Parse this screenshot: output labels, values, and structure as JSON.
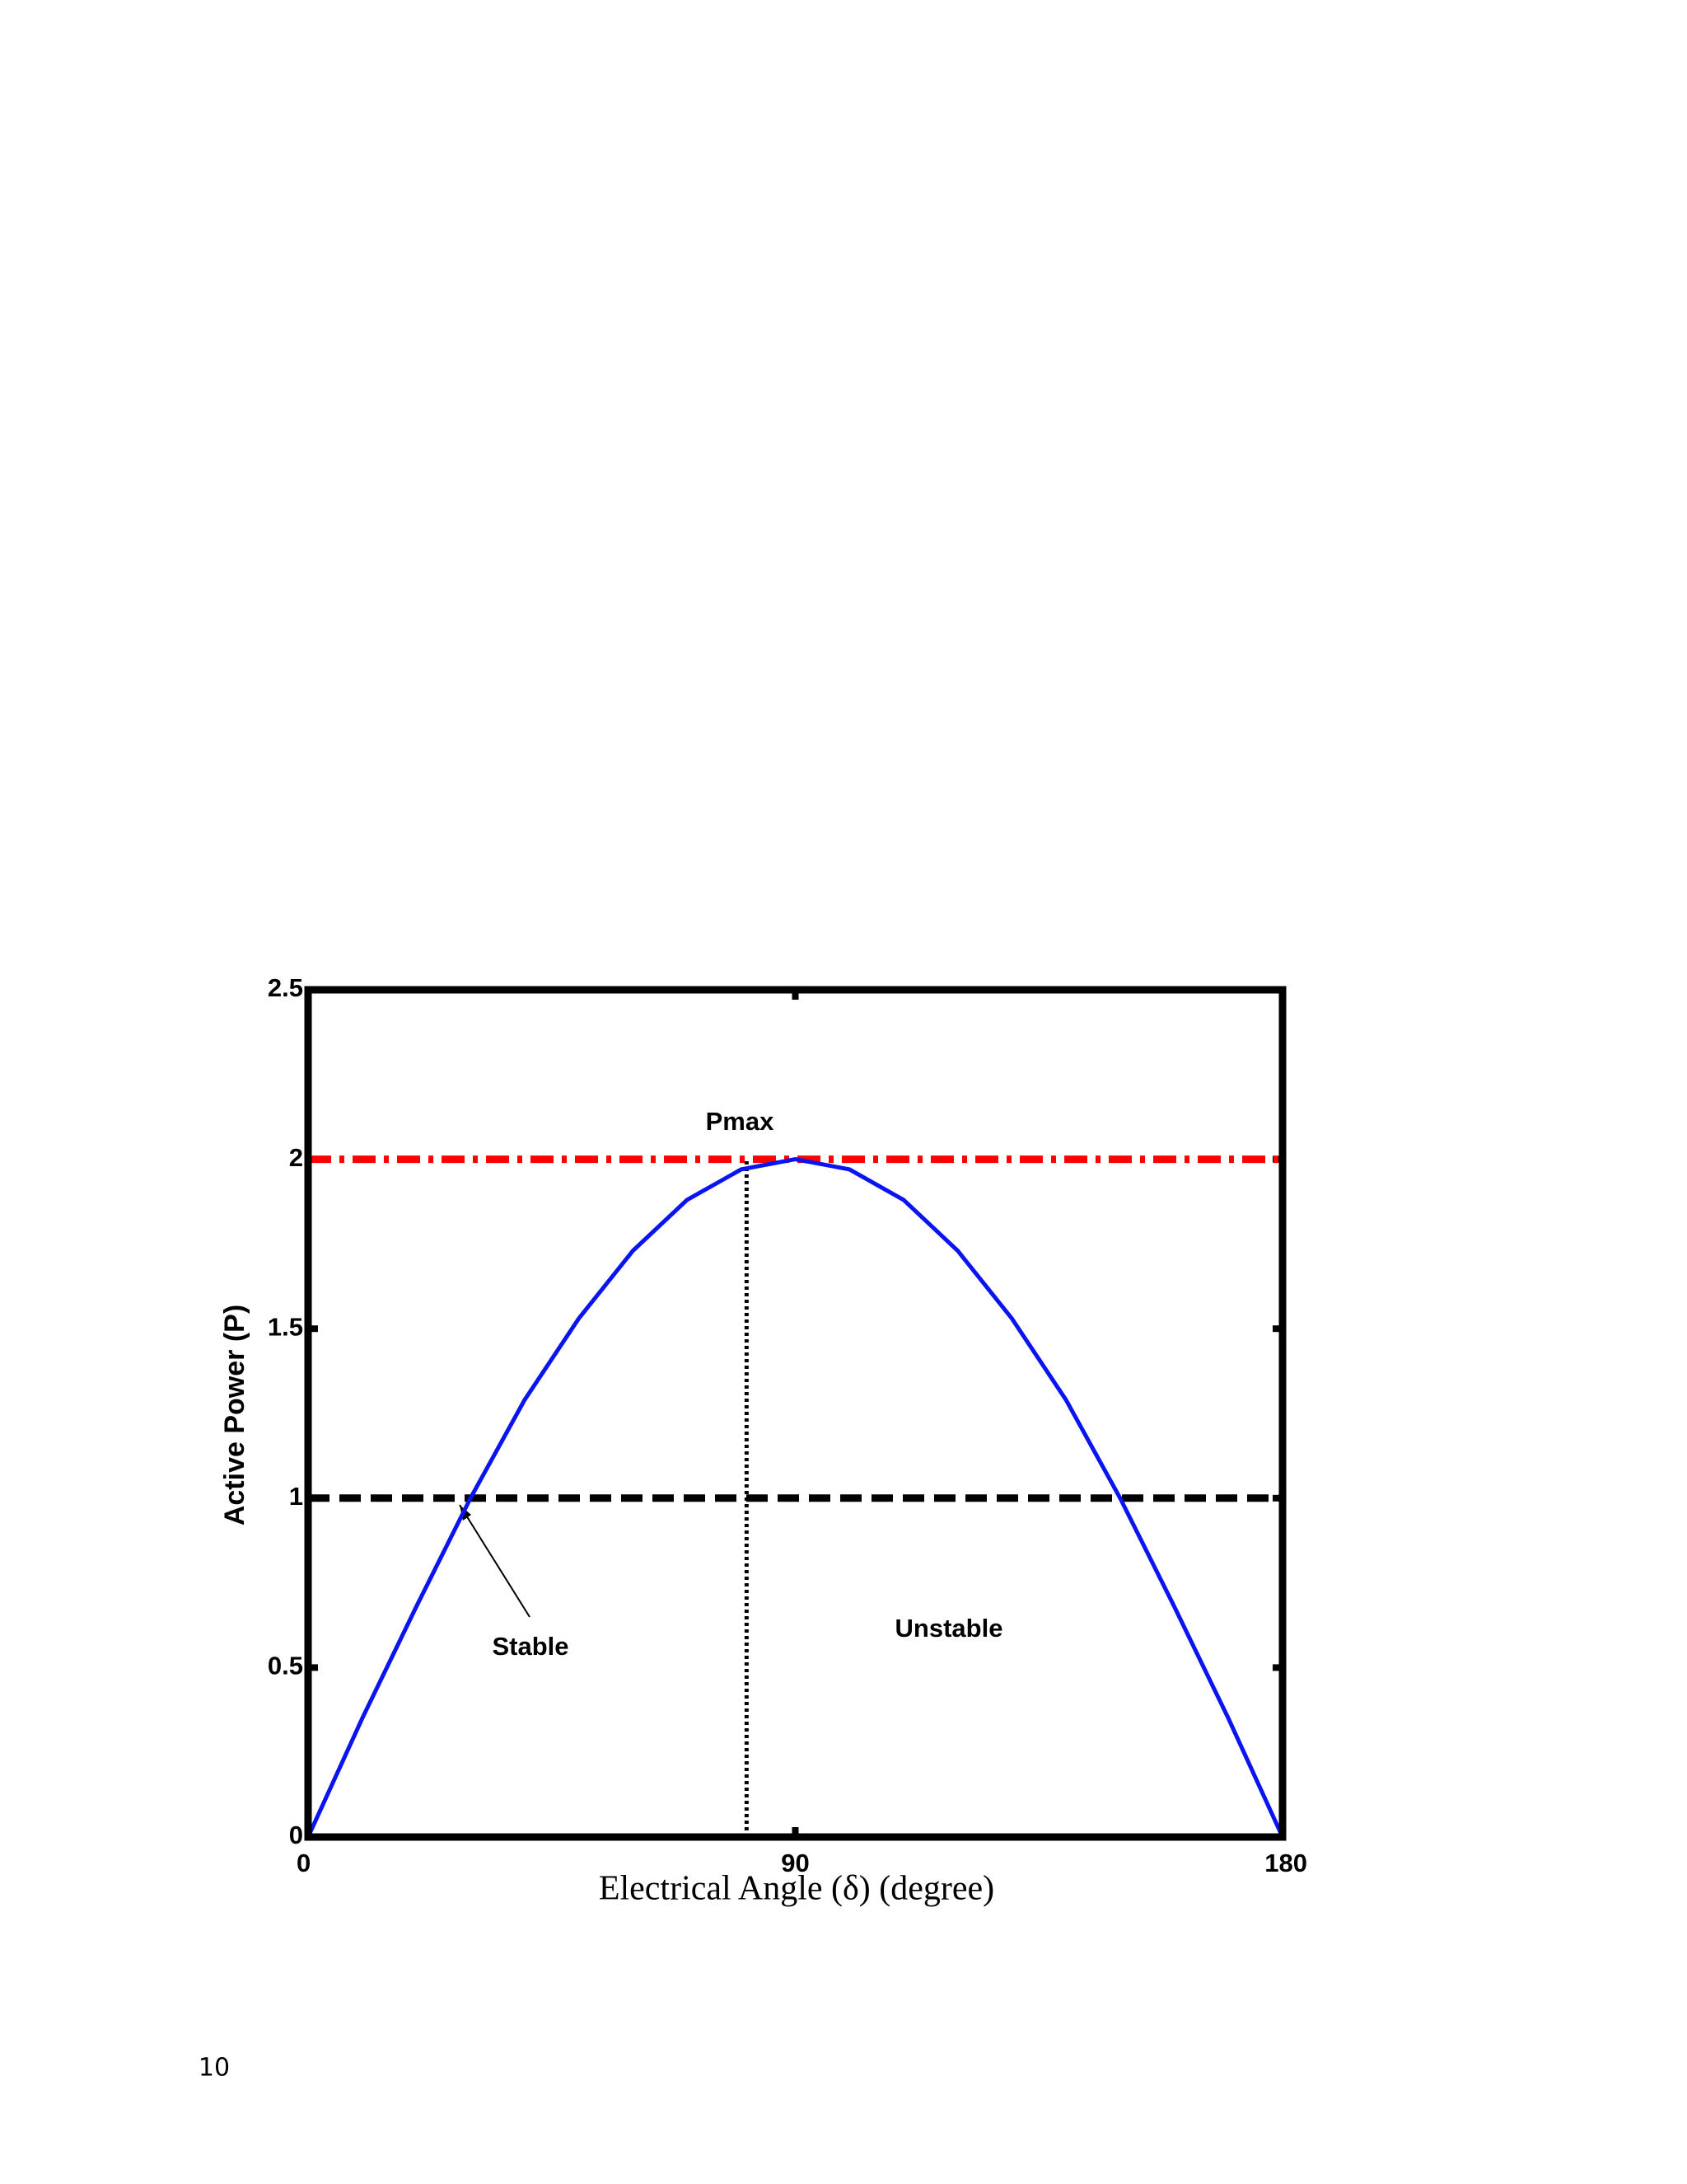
{
  "page_number": "10",
  "chart_data": {
    "type": "line",
    "x_label": "Electrical Angle (δ) (degree)",
    "y_label": "Active Power (P)",
    "x": [
      0,
      10,
      20,
      30,
      40,
      50,
      60,
      70,
      80,
      90,
      100,
      110,
      120,
      130,
      140,
      150,
      160,
      170,
      180
    ],
    "series": [
      {
        "name": "P",
        "color": "#0a14f0",
        "values": [
          0,
          0.35,
          0.68,
          1,
          1.29,
          1.53,
          1.73,
          1.88,
          1.97,
          2,
          1.97,
          1.88,
          1.73,
          1.53,
          1.29,
          1,
          0.68,
          0.35,
          0
        ]
      }
    ],
    "hlines": [
      {
        "y": 2,
        "color": "#ff0000",
        "style": "dashdot"
      },
      {
        "y": 1,
        "color": "#000000",
        "style": "dashed"
      }
    ],
    "vlines": [
      {
        "x": 81,
        "color": "#000000",
        "style": "dotted"
      }
    ],
    "annotations": [
      "Pmax",
      "Stable",
      "Unstable"
    ],
    "xlim": [
      0,
      180
    ],
    "ylim": [
      0,
      2.5
    ],
    "xticks": [
      0,
      90,
      180
    ],
    "yticks": [
      0,
      0.5,
      1,
      1.5,
      2,
      2.5
    ]
  }
}
